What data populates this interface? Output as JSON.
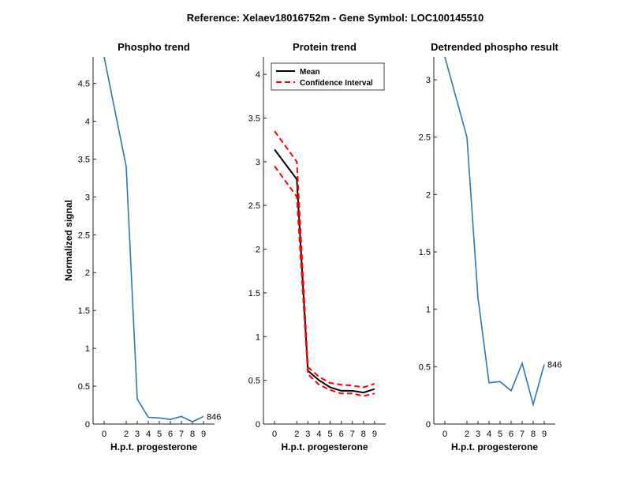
{
  "suptitle": "Reference:  Xelaev18016752m - Gene Symbol:  LOC100145510",
  "colors": {
    "series": "#2a78b8",
    "mean": "#000000",
    "ci": "#ff0000",
    "axis": "#222222"
  },
  "chart_data": [
    {
      "type": "line",
      "title": "Phospho trend",
      "xlabel": "H.p.t. progesterone",
      "ylabel": "Normalized signal",
      "xlim": [
        -1,
        10
      ],
      "ylim": [
        0,
        4.85
      ],
      "xticks": [
        0,
        2,
        3,
        4,
        5,
        6,
        7,
        8,
        9
      ],
      "yticks": [
        0,
        0.5,
        1,
        1.5,
        2,
        2.5,
        3,
        3.5,
        4,
        4.5
      ],
      "ytick_labels": [
        "0",
        "0.5",
        "1",
        "1.5",
        "2",
        "2.5",
        "3",
        "3.5",
        "4",
        "4.5"
      ],
      "series": [
        {
          "x": [
            0,
            2,
            3,
            4,
            5,
            6,
            7,
            8,
            9
          ],
          "values": [
            4.85,
            3.4,
            0.33,
            0.09,
            0.08,
            0.06,
            0.1,
            0.03,
            0.1
          ],
          "end_label": "846"
        }
      ],
      "grid": false
    },
    {
      "type": "line",
      "title": "Protein trend",
      "xlabel": "H.p.t. progesterone",
      "ylabel": "",
      "xlim": [
        -1,
        10
      ],
      "ylim": [
        0,
        4.2
      ],
      "xticks": [
        0,
        2,
        3,
        4,
        5,
        6,
        7,
        8,
        9
      ],
      "yticks": [
        0,
        0.5,
        1,
        1.5,
        2,
        2.5,
        3,
        3.5,
        4
      ],
      "ytick_labels": [
        "0",
        "0.5",
        "1",
        "1.5",
        "2",
        "2.5",
        "3",
        "3.5",
        "4"
      ],
      "legend": {
        "position": "top-left",
        "entries": [
          "Mean",
          "Confidence Interval"
        ]
      },
      "series": [
        {
          "name": "Mean",
          "x": [
            0,
            2,
            3,
            4,
            5,
            6,
            7,
            8,
            9
          ],
          "values": [
            3.14,
            2.8,
            0.61,
            0.5,
            0.42,
            0.38,
            0.38,
            0.36,
            0.4
          ]
        },
        {
          "name": "Confidence Interval",
          "x": [
            0,
            2,
            3,
            4,
            5,
            6,
            7,
            8,
            9
          ],
          "values": [
            3.35,
            3.0,
            0.65,
            0.54,
            0.47,
            0.45,
            0.44,
            0.42,
            0.46
          ]
        },
        {
          "name": "Confidence Interval",
          "x": [
            0,
            2,
            3,
            4,
            5,
            6,
            7,
            8,
            9
          ],
          "values": [
            2.95,
            2.6,
            0.57,
            0.45,
            0.39,
            0.35,
            0.35,
            0.32,
            0.35
          ]
        }
      ],
      "grid": false
    },
    {
      "type": "line",
      "title": "Detrended phospho result",
      "xlabel": "H.p.t. progesterone",
      "ylabel": "",
      "xlim": [
        -1,
        10
      ],
      "ylim": [
        0,
        3.2
      ],
      "xticks": [
        0,
        2,
        3,
        4,
        5,
        6,
        7,
        8,
        9
      ],
      "yticks": [
        0,
        0.5,
        1,
        1.5,
        2,
        2.5,
        3
      ],
      "ytick_labels": [
        "0",
        "0.5",
        "1",
        "1.5",
        "2",
        "2.5",
        "3"
      ],
      "series": [
        {
          "x": [
            0,
            2,
            3,
            4,
            5,
            6,
            7,
            8,
            9
          ],
          "values": [
            3.2,
            2.5,
            1.1,
            0.36,
            0.37,
            0.29,
            0.53,
            0.17,
            0.52
          ],
          "end_label": "846"
        }
      ],
      "grid": false
    }
  ]
}
